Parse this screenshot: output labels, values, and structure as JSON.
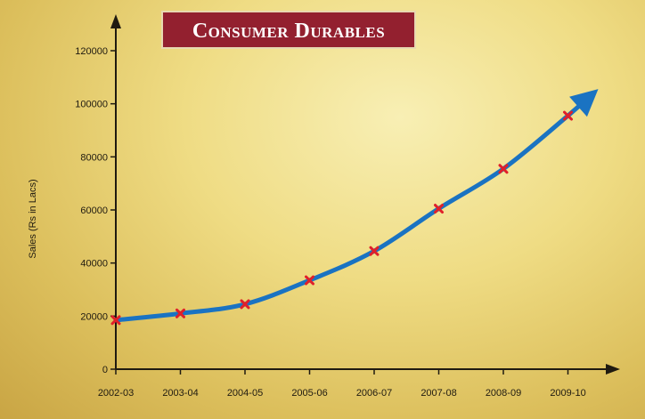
{
  "colors": {
    "line": "#1a73c2",
    "marker": "#e0202a",
    "axis": "#1f1a10",
    "title_bg": "#93202f",
    "title_text": "#ffffff"
  },
  "chart_data": {
    "type": "line",
    "title": "Consumer Durables",
    "xlabel": "",
    "ylabel": "Sales (Rs in Lacs)",
    "categories": [
      "2002-03",
      "2003-04",
      "2004-05",
      "2005-06",
      "2006-07",
      "2007-08",
      "2008-09",
      "2009-10"
    ],
    "series": [
      {
        "values": [
          18500,
          21000,
          24500,
          33500,
          44500,
          60500,
          75500,
          95500
        ]
      }
    ],
    "ylim": [
      0,
      120000
    ],
    "yticks": [
      0,
      20000,
      40000,
      60000,
      80000,
      100000,
      120000
    ],
    "grid": false,
    "trend_arrow": true
  }
}
